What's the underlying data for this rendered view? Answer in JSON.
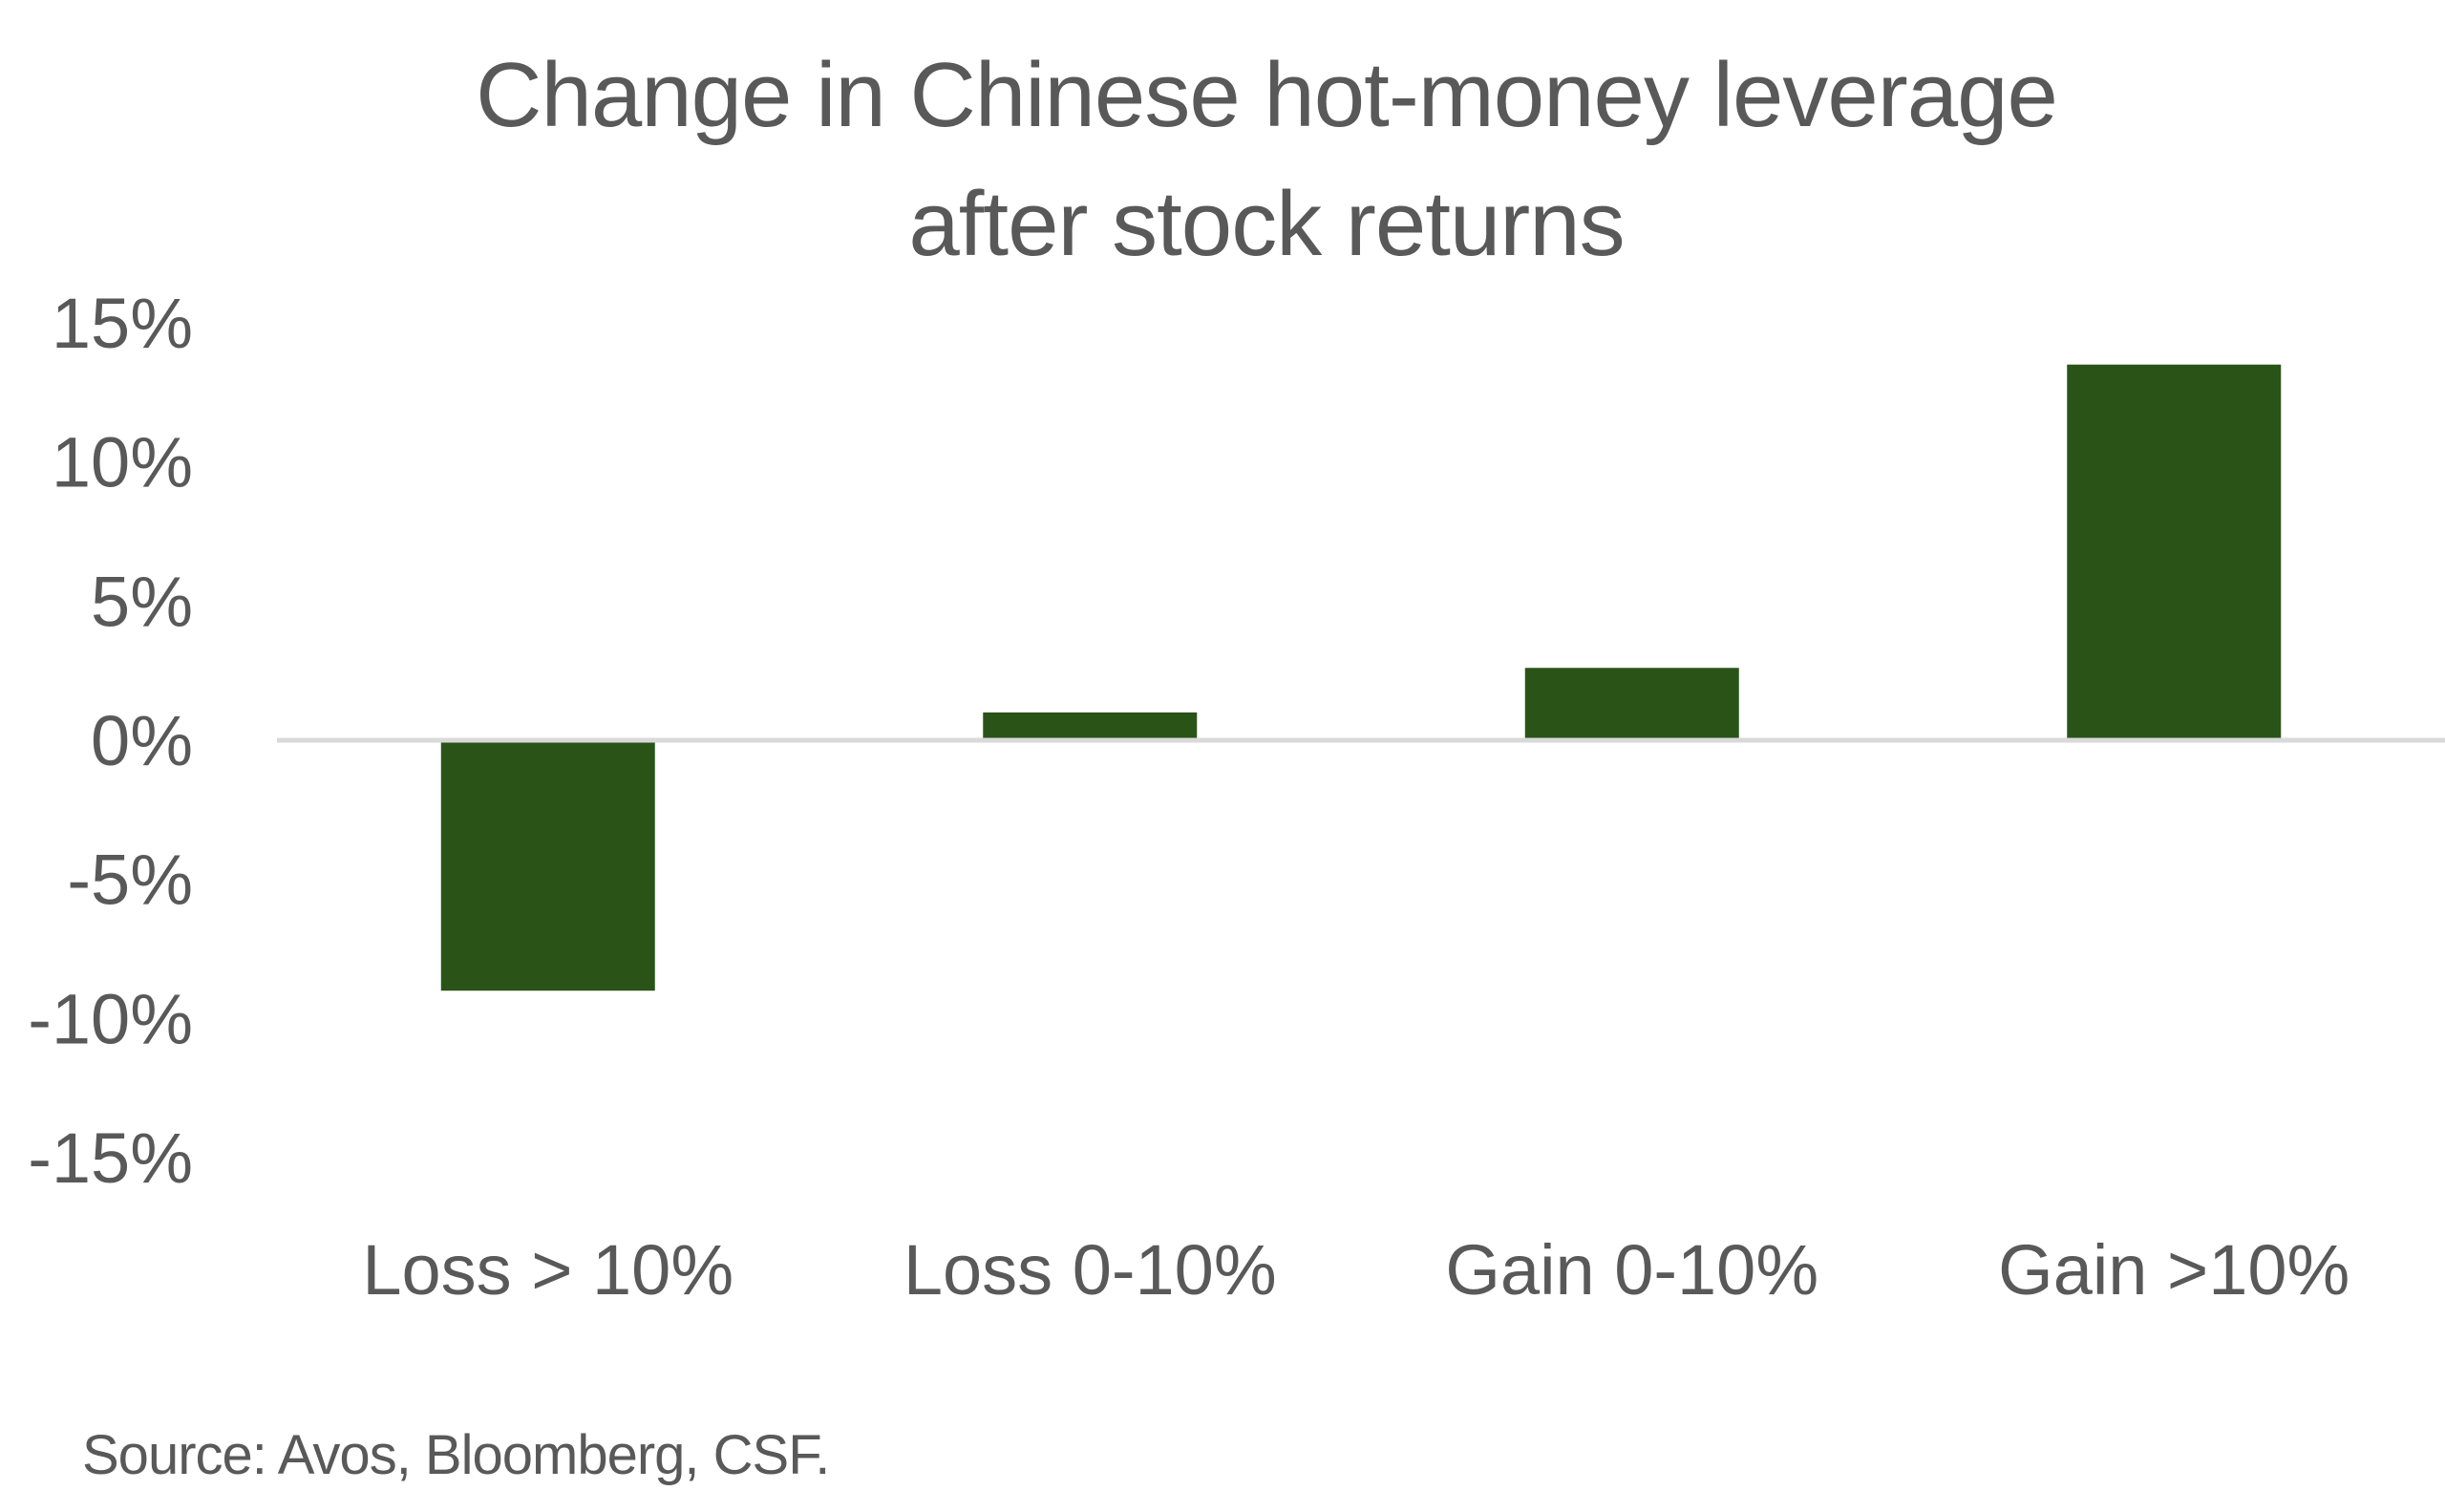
{
  "chart_data": {
    "type": "bar",
    "title_lines": [
      "Change in Chinese hot-money leverage",
      "after stock returns"
    ],
    "categories": [
      "Loss > 10%",
      "Loss 0-10%",
      "Gain 0-10%",
      "Gain >10%"
    ],
    "values": [
      -9.0,
      1.0,
      2.6,
      13.5
    ],
    "xlabel": "",
    "ylabel": "",
    "ylim": [
      -15,
      15
    ],
    "yticks": [
      15,
      10,
      5,
      0,
      -5,
      -10,
      -15
    ],
    "ytick_labels": [
      "15%",
      "10%",
      "5%",
      "0%",
      "-5%",
      "-10%",
      "-15%"
    ],
    "grid": false,
    "legend": "none",
    "bar_color": "#2a5318",
    "axis_color": "#d9d9d9",
    "text_color": "#595959",
    "source": "Source: Avos, Bloomberg, CSF."
  }
}
